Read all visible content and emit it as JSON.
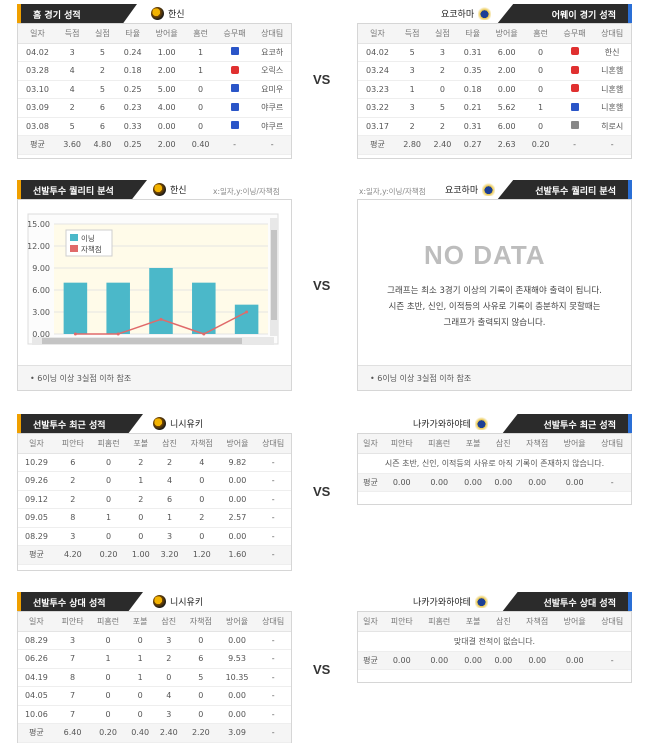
{
  "vs_label": "VS",
  "section1": {
    "left": {
      "title": "홈 경기 성적",
      "team": "한신",
      "columns": [
        "일자",
        "득점",
        "실점",
        "타율",
        "방어율",
        "홈런",
        "승무패",
        "상대팀"
      ],
      "rows": [
        {
          "date": "04.02",
          "runs": "3",
          "allowed": "5",
          "avg": "0.24",
          "era": "1.00",
          "hr": "1",
          "result": "win",
          "opp": "요코하"
        },
        {
          "date": "03.28",
          "runs": "4",
          "allowed": "2",
          "avg": "0.18",
          "era": "2.00",
          "hr": "1",
          "result": "loss",
          "opp": "오릭스"
        },
        {
          "date": "03.10",
          "runs": "4",
          "allowed": "5",
          "avg": "0.25",
          "era": "5.00",
          "hr": "0",
          "result": "win",
          "opp": "요미우"
        },
        {
          "date": "03.09",
          "runs": "2",
          "allowed": "6",
          "avg": "0.23",
          "era": "4.00",
          "hr": "0",
          "result": "win",
          "opp": "야쿠르"
        },
        {
          "date": "03.08",
          "runs": "5",
          "allowed": "6",
          "avg": "0.33",
          "era": "0.00",
          "hr": "0",
          "result": "win",
          "opp": "야쿠르"
        }
      ],
      "avg_row": {
        "label": "평균",
        "runs": "3.60",
        "allowed": "4.80",
        "avg": "0.25",
        "era": "2.00",
        "hr": "0.40",
        "result": "-",
        "opp": "-"
      }
    },
    "right": {
      "title": "어웨이 경기 성적",
      "team": "요코하마",
      "columns": [
        "일자",
        "득점",
        "실점",
        "타율",
        "방어율",
        "홈런",
        "승무패",
        "상대팀"
      ],
      "rows": [
        {
          "date": "04.02",
          "runs": "5",
          "allowed": "3",
          "avg": "0.31",
          "era": "6.00",
          "hr": "0",
          "result": "loss",
          "opp": "한신"
        },
        {
          "date": "03.24",
          "runs": "3",
          "allowed": "2",
          "avg": "0.35",
          "era": "2.00",
          "hr": "0",
          "result": "loss",
          "opp": "니혼햄"
        },
        {
          "date": "03.23",
          "runs": "1",
          "allowed": "0",
          "avg": "0.18",
          "era": "0.00",
          "hr": "0",
          "result": "loss",
          "opp": "니혼햄"
        },
        {
          "date": "03.22",
          "runs": "3",
          "allowed": "5",
          "avg": "0.21",
          "era": "5.62",
          "hr": "1",
          "result": "win",
          "opp": "니혼햄"
        },
        {
          "date": "03.17",
          "runs": "2",
          "allowed": "2",
          "avg": "0.31",
          "era": "6.00",
          "hr": "0",
          "result": "nd",
          "opp": "히로시"
        }
      ],
      "avg_row": {
        "label": "평균",
        "runs": "2.80",
        "allowed": "2.40",
        "avg": "0.27",
        "era": "2.63",
        "hr": "0.20",
        "result": "-",
        "opp": "-"
      }
    }
  },
  "section2": {
    "left": {
      "title": "선발투수 퀄리티 분석",
      "team": "한신",
      "hint": "x:일자,y:이닝/자책점",
      "footnote": "• 6이닝 이상 3실점 이하 참조",
      "chart_data": {
        "type": "bar",
        "categories": [
          "",
          "",
          "",
          "",
          ""
        ],
        "series": [
          {
            "name": "이닝",
            "values": [
              7,
              7,
              9,
              7,
              4
            ]
          },
          {
            "name": "자책점",
            "values": [
              0,
              0,
              2,
              0,
              3
            ]
          }
        ],
        "ylim": [
          0,
          15
        ],
        "yticks": [
          "15.00",
          "12.00",
          "9.00",
          "6.00",
          "3.00",
          "0.00"
        ],
        "legend": "top-left"
      }
    },
    "right": {
      "hint": "x:일자,y:이닝/자책점",
      "team": "요코하마",
      "title": "선발투수 퀄리티 분석",
      "nodata_title": "NO DATA",
      "nodata_line1": "그래프는 최소 3경기 이상의 기록이 존재해야 출력이 됩니다.",
      "nodata_line2": "시즌 초반, 신인, 이적등의 사유로 기록이 충분하지 못할때는",
      "nodata_line3": "그래프가 출력되지 않습니다.",
      "footnote": "• 6이닝 이상 3실점 이하 참조"
    }
  },
  "section3": {
    "left": {
      "title": "선발투수 최근 성적",
      "team": "니시유키",
      "columns": [
        "일자",
        "피안타",
        "피홈런",
        "포볼",
        "삼진",
        "자책점",
        "방어율",
        "상대팀"
      ],
      "rows": [
        {
          "c": [
            "10.29",
            "6",
            "0",
            "2",
            "2",
            "4",
            "9.82",
            "-"
          ]
        },
        {
          "c": [
            "09.26",
            "2",
            "0",
            "1",
            "4",
            "0",
            "0.00",
            "-"
          ]
        },
        {
          "c": [
            "09.12",
            "2",
            "0",
            "2",
            "6",
            "0",
            "0.00",
            "-"
          ]
        },
        {
          "c": [
            "09.05",
            "8",
            "1",
            "0",
            "1",
            "2",
            "2.57",
            "-"
          ]
        },
        {
          "c": [
            "08.29",
            "3",
            "0",
            "0",
            "3",
            "0",
            "0.00",
            "-"
          ]
        }
      ],
      "avg_row": [
        "평균",
        "4.20",
        "0.20",
        "1.00",
        "3.20",
        "1.20",
        "1.60",
        "-"
      ]
    },
    "right": {
      "title": "선발투수 최근 성적",
      "team": "나카가와하야테",
      "columns": [
        "일자",
        "피안타",
        "피홈런",
        "포볼",
        "삼진",
        "자책점",
        "방어율",
        "상대팀"
      ],
      "message": "시즌 초반, 신인, 이적등의 사유로 아직 기록이 존재하지 않습니다.",
      "avg_row": [
        "평균",
        "0.00",
        "0.00",
        "0.00",
        "0.00",
        "0.00",
        "0.00",
        "-"
      ]
    }
  },
  "section4": {
    "left": {
      "title": "선발투수 상대 성적",
      "team": "니시유키",
      "columns": [
        "일자",
        "피안타",
        "피홈런",
        "포볼",
        "삼진",
        "자책점",
        "방어율",
        "상대팀"
      ],
      "rows": [
        {
          "c": [
            "08.29",
            "3",
            "0",
            "0",
            "3",
            "0",
            "0.00",
            "-"
          ]
        },
        {
          "c": [
            "06.26",
            "7",
            "1",
            "1",
            "2",
            "6",
            "9.53",
            "-"
          ]
        },
        {
          "c": [
            "04.19",
            "8",
            "0",
            "1",
            "0",
            "5",
            "10.35",
            "-"
          ]
        },
        {
          "c": [
            "04.05",
            "7",
            "0",
            "0",
            "4",
            "0",
            "0.00",
            "-"
          ]
        },
        {
          "c": [
            "10.06",
            "7",
            "0",
            "0",
            "3",
            "0",
            "0.00",
            "-"
          ]
        }
      ],
      "avg_row": [
        "평균",
        "6.40",
        "0.20",
        "0.40",
        "2.40",
        "2.20",
        "3.09",
        "-"
      ]
    },
    "right": {
      "title": "선발투수 상대 성적",
      "team": "나카가와하야테",
      "columns": [
        "일자",
        "피안타",
        "피홈런",
        "포볼",
        "삼진",
        "자책점",
        "방어율",
        "상대팀"
      ],
      "message": "맞대결 전적이 없습니다.",
      "avg_row": [
        "평균",
        "0.00",
        "0.00",
        "0.00",
        "0.00",
        "0.00",
        "0.00",
        "-"
      ]
    }
  },
  "colors": {
    "bar": "#4bb8c9",
    "line": "#e06a6a",
    "accent_left": "#f0a000",
    "accent_right": "#2a6fd6"
  }
}
